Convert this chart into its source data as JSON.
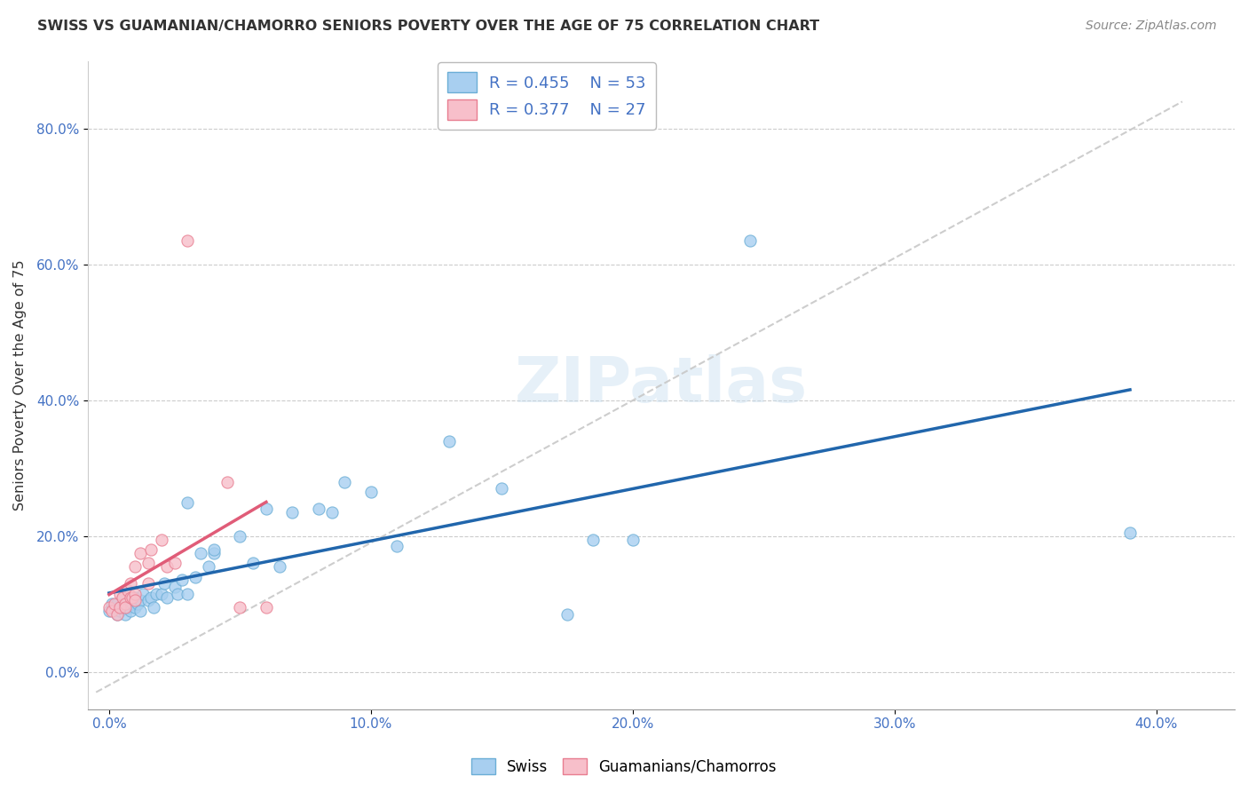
{
  "title": "SWISS VS GUAMANIAN/CHAMORRO SENIORS POVERTY OVER THE AGE OF 75 CORRELATION CHART",
  "source": "Source: ZipAtlas.com",
  "xlabel_ticks": [
    "0.0%",
    "10.0%",
    "20.0%",
    "30.0%",
    "40.0%"
  ],
  "ylabel_ticks": [
    "0.0%",
    "20.0%",
    "40.0%",
    "60.0%",
    "80.0%"
  ],
  "xlabel_vals": [
    0.0,
    0.1,
    0.2,
    0.3,
    0.4
  ],
  "ylabel_vals": [
    0.0,
    0.2,
    0.4,
    0.6,
    0.8
  ],
  "xlim": [
    -0.008,
    0.43
  ],
  "ylim": [
    -0.055,
    0.9
  ],
  "ylabel": "Seniors Poverty Over the Age of 75",
  "watermark": "ZIPatlas",
  "swiss_R": 0.455,
  "swiss_N": 53,
  "guam_R": 0.377,
  "guam_N": 27,
  "swiss_color": "#a8cff0",
  "guam_color": "#f7bfca",
  "swiss_edge_color": "#6baed6",
  "guam_edge_color": "#e87d90",
  "swiss_line_color": "#2166ac",
  "guam_line_color": "#e05c78",
  "ref_line_color": "#c8c8c8",
  "swiss_scatter": [
    [
      0.0,
      0.09
    ],
    [
      0.001,
      0.1
    ],
    [
      0.002,
      0.095
    ],
    [
      0.003,
      0.085
    ],
    [
      0.003,
      0.1
    ],
    [
      0.004,
      0.09
    ],
    [
      0.005,
      0.095
    ],
    [
      0.005,
      0.11
    ],
    [
      0.006,
      0.085
    ],
    [
      0.007,
      0.095
    ],
    [
      0.008,
      0.105
    ],
    [
      0.008,
      0.09
    ],
    [
      0.009,
      0.1
    ],
    [
      0.01,
      0.11
    ],
    [
      0.01,
      0.095
    ],
    [
      0.011,
      0.1
    ],
    [
      0.012,
      0.105
    ],
    [
      0.012,
      0.09
    ],
    [
      0.013,
      0.115
    ],
    [
      0.015,
      0.105
    ],
    [
      0.016,
      0.11
    ],
    [
      0.017,
      0.095
    ],
    [
      0.018,
      0.115
    ],
    [
      0.02,
      0.115
    ],
    [
      0.021,
      0.13
    ],
    [
      0.022,
      0.11
    ],
    [
      0.025,
      0.125
    ],
    [
      0.026,
      0.115
    ],
    [
      0.028,
      0.135
    ],
    [
      0.03,
      0.115
    ],
    [
      0.03,
      0.25
    ],
    [
      0.033,
      0.14
    ],
    [
      0.035,
      0.175
    ],
    [
      0.038,
      0.155
    ],
    [
      0.04,
      0.175
    ],
    [
      0.04,
      0.18
    ],
    [
      0.05,
      0.2
    ],
    [
      0.055,
      0.16
    ],
    [
      0.06,
      0.24
    ],
    [
      0.065,
      0.155
    ],
    [
      0.07,
      0.235
    ],
    [
      0.08,
      0.24
    ],
    [
      0.085,
      0.235
    ],
    [
      0.09,
      0.28
    ],
    [
      0.1,
      0.265
    ],
    [
      0.11,
      0.185
    ],
    [
      0.13,
      0.34
    ],
    [
      0.15,
      0.27
    ],
    [
      0.175,
      0.085
    ],
    [
      0.185,
      0.195
    ],
    [
      0.2,
      0.195
    ],
    [
      0.245,
      0.635
    ],
    [
      0.39,
      0.205
    ]
  ],
  "guam_scatter": [
    [
      0.0,
      0.095
    ],
    [
      0.001,
      0.09
    ],
    [
      0.002,
      0.1
    ],
    [
      0.003,
      0.085
    ],
    [
      0.004,
      0.095
    ],
    [
      0.004,
      0.115
    ],
    [
      0.005,
      0.11
    ],
    [
      0.006,
      0.1
    ],
    [
      0.006,
      0.095
    ],
    [
      0.007,
      0.12
    ],
    [
      0.008,
      0.13
    ],
    [
      0.008,
      0.11
    ],
    [
      0.009,
      0.11
    ],
    [
      0.01,
      0.115
    ],
    [
      0.01,
      0.155
    ],
    [
      0.01,
      0.105
    ],
    [
      0.012,
      0.175
    ],
    [
      0.015,
      0.13
    ],
    [
      0.015,
      0.16
    ],
    [
      0.016,
      0.18
    ],
    [
      0.02,
      0.195
    ],
    [
      0.022,
      0.155
    ],
    [
      0.025,
      0.16
    ],
    [
      0.03,
      0.635
    ],
    [
      0.045,
      0.28
    ],
    [
      0.05,
      0.095
    ],
    [
      0.06,
      0.095
    ]
  ]
}
